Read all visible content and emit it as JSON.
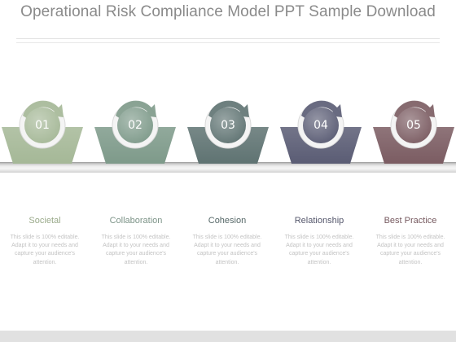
{
  "title": "Operational Risk Compliance Model PPT Sample Download",
  "steps": [
    {
      "number": "01",
      "label": "Societal",
      "description": "This slide is 100% editable. Adapt it to your needs and capture your audience's attention.",
      "color": "#a5b897",
      "label_color": "#9aaa8a"
    },
    {
      "number": "02",
      "label": "Collaboration",
      "description": "This slide is 100% editable. Adapt it to your needs and capture your audience's attention.",
      "color": "#7e9a8a",
      "label_color": "#7d9488"
    },
    {
      "number": "03",
      "label": "Cohesion",
      "description": "This slide is 100% editable. Adapt it to your needs and capture your audience's attention.",
      "color": "#5f7372",
      "label_color": "#566868"
    },
    {
      "number": "04",
      "label": "Relationship",
      "description": "This slide is 100% editable. Adapt it to your needs and capture your audience's attention.",
      "color": "#5a5c74",
      "label_color": "#55576c"
    },
    {
      "number": "05",
      "label": "Best Practice",
      "description": "This slide is 100% editable. Adapt it to your needs and capture your audience's attention.",
      "color": "#7b5c62",
      "label_color": "#775a60"
    }
  ]
}
